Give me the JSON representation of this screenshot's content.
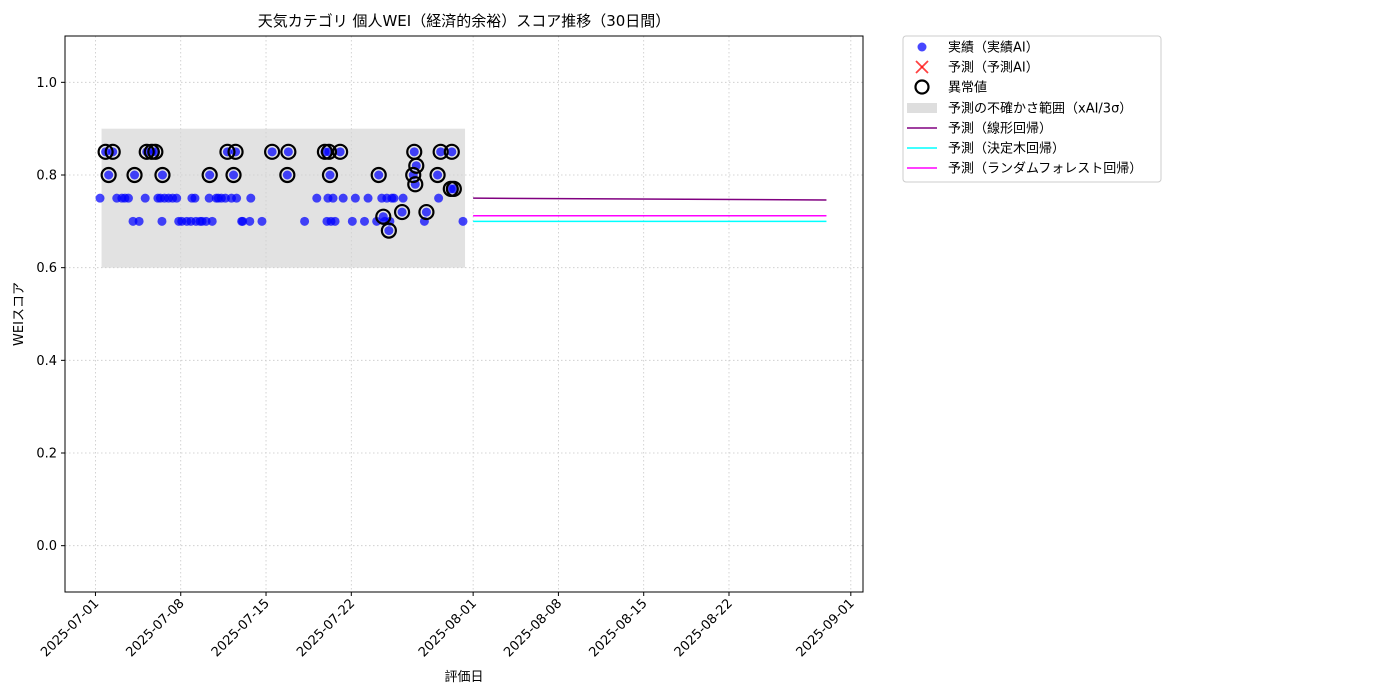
{
  "chart_data": {
    "type": "scatter",
    "title": "天気カテゴリ 個人WEI（経済的余裕）スコア推移（30日間）",
    "xlabel": "評価日",
    "ylabel": "WEIスコア",
    "xlim": [
      "2025-06-28T12:00",
      "2025-09-02T00:00"
    ],
    "ylim": [
      -0.1,
      1.1
    ],
    "grid": true,
    "x_ticks": [
      "2025-07-01",
      "2025-07-08",
      "2025-07-15",
      "2025-07-22",
      "2025-08-01",
      "2025-08-08",
      "2025-08-15",
      "2025-08-22",
      "2025-09-01"
    ],
    "y_ticks": [
      0.0,
      0.2,
      0.4,
      0.6,
      0.8,
      1.0
    ],
    "y_tick_labels": [
      "0.0",
      "0.2",
      "0.4",
      "0.6",
      "0.8",
      "1.0"
    ],
    "legend_position": "outside upper right",
    "legend": [
      "実績（実績AI）",
      "予測（予測AI）",
      "異常値",
      "予測の不確かさ範囲（xAI/3σ）",
      "予測（線形回帰）",
      "予測（決定木回帰）",
      "予測（ランダムフォレスト回帰）"
    ],
    "colors": {
      "actual": "#0000ff",
      "predicted": "#ff0000",
      "anomaly": "#000000",
      "band": "#d3d3d3",
      "linear": "#800080",
      "tree": "#00ffff",
      "forest": "#ff00ff"
    },
    "uncertainty_band": {
      "x": [
        "2025-07-01T12:00",
        "2025-07-31T08:00"
      ],
      "y": [
        0.6,
        0.9
      ]
    },
    "series": [
      {
        "key": "actual",
        "points": [
          [
            "2025-07-01T09:00",
            0.75
          ],
          [
            "2025-07-01T20:00",
            0.85
          ],
          [
            "2025-07-02T02:00",
            0.8
          ],
          [
            "2025-07-02T10:00",
            0.85
          ],
          [
            "2025-07-02T18:00",
            0.75
          ],
          [
            "2025-07-03T04:00",
            0.75
          ],
          [
            "2025-07-03T10:00",
            0.75
          ],
          [
            "2025-07-03T17:00",
            0.75
          ],
          [
            "2025-07-04T02:00",
            0.7
          ],
          [
            "2025-07-04T05:00",
            0.8
          ],
          [
            "2025-07-04T14:00",
            0.7
          ],
          [
            "2025-07-05T02:00",
            0.75
          ],
          [
            "2025-07-05T05:00",
            0.85
          ],
          [
            "2025-07-05T15:00",
            0.85
          ],
          [
            "2025-07-05T22:00",
            0.85
          ],
          [
            "2025-07-06T03:00",
            0.75
          ],
          [
            "2025-07-06T08:00",
            0.75
          ],
          [
            "2025-07-06T11:00",
            0.7
          ],
          [
            "2025-07-06T12:00",
            0.8
          ],
          [
            "2025-07-06T16:00",
            0.75
          ],
          [
            "2025-07-07T00:00",
            0.75
          ],
          [
            "2025-07-07T08:00",
            0.75
          ],
          [
            "2025-07-07T16:00",
            0.75
          ],
          [
            "2025-07-07T20:00",
            0.7
          ],
          [
            "2025-07-08T02:00",
            0.7
          ],
          [
            "2025-07-08T12:00",
            0.7
          ],
          [
            "2025-07-08T20:00",
            0.7
          ],
          [
            "2025-07-08T22:00",
            0.75
          ],
          [
            "2025-07-09T04:00",
            0.75
          ],
          [
            "2025-07-09T06:00",
            0.7
          ],
          [
            "2025-07-09T14:00",
            0.7
          ],
          [
            "2025-07-09T18:00",
            0.7
          ],
          [
            "2025-07-10T02:00",
            0.7
          ],
          [
            "2025-07-10T08:00",
            0.75
          ],
          [
            "2025-07-10T09:00",
            0.8
          ],
          [
            "2025-07-10T14:00",
            0.7
          ],
          [
            "2025-07-10T22:00",
            0.75
          ],
          [
            "2025-07-11T02:00",
            0.75
          ],
          [
            "2025-07-11T08:00",
            0.75
          ],
          [
            "2025-07-11T16:00",
            0.75
          ],
          [
            "2025-07-11T20:00",
            0.85
          ],
          [
            "2025-07-12T04:00",
            0.75
          ],
          [
            "2025-07-12T08:00",
            0.8
          ],
          [
            "2025-07-12T12:00",
            0.85
          ],
          [
            "2025-07-12T14:00",
            0.75
          ],
          [
            "2025-07-13T00:00",
            0.7
          ],
          [
            "2025-07-13T02:00",
            0.7
          ],
          [
            "2025-07-13T16:00",
            0.7
          ],
          [
            "2025-07-13T18:00",
            0.75
          ],
          [
            "2025-07-14T16:00",
            0.7
          ],
          [
            "2025-07-15T12:00",
            0.85
          ],
          [
            "2025-07-16T18:00",
            0.8
          ],
          [
            "2025-07-16T20:00",
            0.85
          ],
          [
            "2025-07-18T04:00",
            0.7
          ],
          [
            "2025-07-19T04:00",
            0.75
          ],
          [
            "2025-07-19T20:00",
            0.85
          ],
          [
            "2025-07-20T00:00",
            0.7
          ],
          [
            "2025-07-20T02:00",
            0.75
          ],
          [
            "2025-07-20T04:00",
            0.85
          ],
          [
            "2025-07-20T06:00",
            0.8
          ],
          [
            "2025-07-20T08:00",
            0.7
          ],
          [
            "2025-07-20T12:00",
            0.75
          ],
          [
            "2025-07-20T16:00",
            0.7
          ],
          [
            "2025-07-21T02:00",
            0.85
          ],
          [
            "2025-07-21T08:00",
            0.75
          ],
          [
            "2025-07-22T02:00",
            0.7
          ],
          [
            "2025-07-22T08:00",
            0.75
          ],
          [
            "2025-07-23T02:00",
            0.7
          ],
          [
            "2025-07-23T09:00",
            0.75
          ],
          [
            "2025-07-24T02:00",
            0.7
          ],
          [
            "2025-07-24T06:00",
            0.8
          ],
          [
            "2025-07-24T12:00",
            0.75
          ],
          [
            "2025-07-24T15:00",
            0.71
          ],
          [
            "2025-07-24T18:00",
            0.7
          ],
          [
            "2025-07-24T22:00",
            0.75
          ],
          [
            "2025-07-25T02:00",
            0.68
          ],
          [
            "2025-07-25T04:00",
            0.7
          ],
          [
            "2025-07-25T08:00",
            0.75
          ],
          [
            "2025-07-25T12:00",
            0.75
          ],
          [
            "2025-07-26T04:00",
            0.72
          ],
          [
            "2025-07-26T06:00",
            0.75
          ],
          [
            "2025-07-27T02:00",
            0.8
          ],
          [
            "2025-07-27T04:00",
            0.85
          ],
          [
            "2025-07-27T06:00",
            0.78
          ],
          [
            "2025-07-27T08:00",
            0.82
          ],
          [
            "2025-07-28T00:00",
            0.7
          ],
          [
            "2025-07-28T04:00",
            0.72
          ],
          [
            "2025-07-29T02:00",
            0.8
          ],
          [
            "2025-07-29T04:00",
            0.75
          ],
          [
            "2025-07-29T08:00",
            0.85
          ],
          [
            "2025-07-30T04:00",
            0.77
          ],
          [
            "2025-07-30T06:00",
            0.85
          ],
          [
            "2025-07-30T10:00",
            0.77
          ],
          [
            "2025-07-31T04:00",
            0.7
          ]
        ]
      },
      {
        "key": "anomaly",
        "points": [
          [
            "2025-07-01T20:00",
            0.85
          ],
          [
            "2025-07-02T02:00",
            0.8
          ],
          [
            "2025-07-02T10:00",
            0.85
          ],
          [
            "2025-07-04T05:00",
            0.8
          ],
          [
            "2025-07-05T05:00",
            0.85
          ],
          [
            "2025-07-05T15:00",
            0.85
          ],
          [
            "2025-07-05T22:00",
            0.85
          ],
          [
            "2025-07-06T12:00",
            0.8
          ],
          [
            "2025-07-10T09:00",
            0.8
          ],
          [
            "2025-07-11T20:00",
            0.85
          ],
          [
            "2025-07-12T08:00",
            0.8
          ],
          [
            "2025-07-12T12:00",
            0.85
          ],
          [
            "2025-07-15T12:00",
            0.85
          ],
          [
            "2025-07-16T18:00",
            0.8
          ],
          [
            "2025-07-16T20:00",
            0.85
          ],
          [
            "2025-07-19T20:00",
            0.85
          ],
          [
            "2025-07-20T04:00",
            0.85
          ],
          [
            "2025-07-20T06:00",
            0.8
          ],
          [
            "2025-07-21T02:00",
            0.85
          ],
          [
            "2025-07-24T06:00",
            0.8
          ],
          [
            "2025-07-24T15:00",
            0.71
          ],
          [
            "2025-07-25T02:00",
            0.68
          ],
          [
            "2025-07-26T04:00",
            0.72
          ],
          [
            "2025-07-27T02:00",
            0.8
          ],
          [
            "2025-07-27T04:00",
            0.85
          ],
          [
            "2025-07-27T06:00",
            0.78
          ],
          [
            "2025-07-27T08:00",
            0.82
          ],
          [
            "2025-07-28T04:00",
            0.72
          ],
          [
            "2025-07-29T02:00",
            0.8
          ],
          [
            "2025-07-29T08:00",
            0.85
          ],
          [
            "2025-07-30T04:00",
            0.77
          ],
          [
            "2025-07-30T06:00",
            0.85
          ],
          [
            "2025-07-30T10:00",
            0.77
          ]
        ]
      },
      {
        "key": "linear",
        "points": [
          [
            "2025-08-01T00:00",
            0.75
          ],
          [
            "2025-08-30T00:00",
            0.746
          ]
        ]
      },
      {
        "key": "tree",
        "points": [
          [
            "2025-08-01T00:00",
            0.7
          ],
          [
            "2025-08-30T00:00",
            0.7
          ]
        ]
      },
      {
        "key": "forest",
        "points": [
          [
            "2025-08-01T00:00",
            0.712
          ],
          [
            "2025-08-30T00:00",
            0.712
          ]
        ]
      }
    ]
  }
}
